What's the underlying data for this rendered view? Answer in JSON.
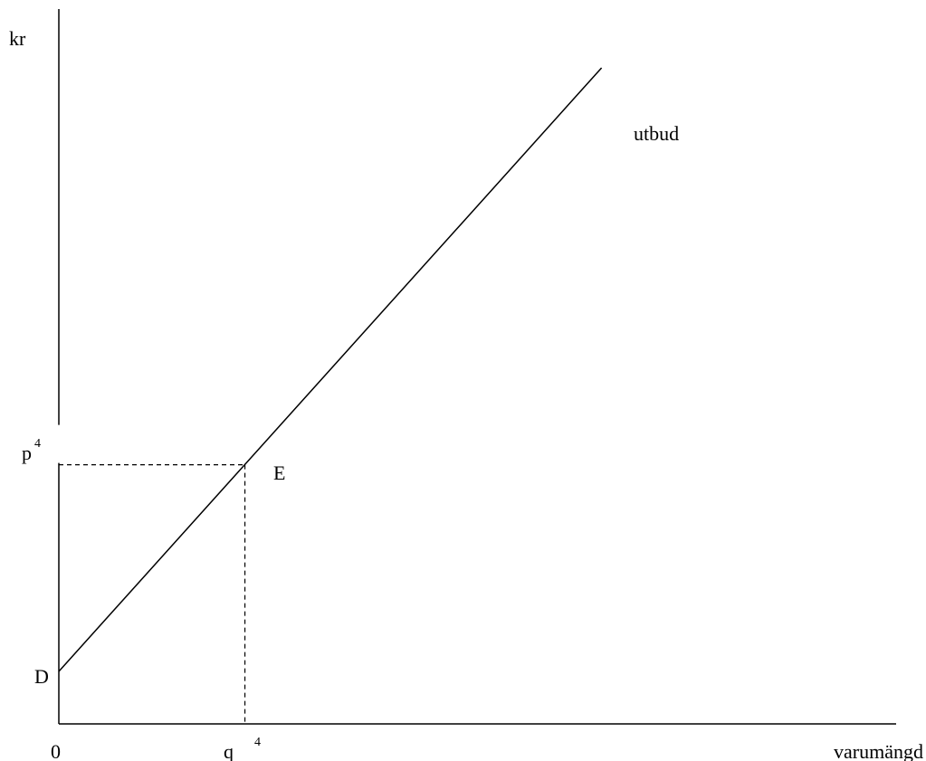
{
  "chart_data": {
    "type": "line",
    "title": "",
    "xlabel": "varumängd",
    "ylabel": "kr",
    "origin_label": "0",
    "xlim": [
      0,
      100
    ],
    "ylim": [
      0,
      100
    ],
    "grid": false,
    "series": [
      {
        "name": "utbud",
        "x": [
          0,
          70
        ],
        "y": [
          8,
          100
        ]
      }
    ],
    "points": [
      {
        "name": "D",
        "label": "D",
        "x": 0,
        "y": 8
      },
      {
        "name": "E",
        "label": "E",
        "x": 24,
        "y": 39.5
      }
    ],
    "guides": {
      "price": {
        "label": "p",
        "sup": "4",
        "value": 39.5
      },
      "quantity": {
        "label": "q",
        "sup": "4",
        "value": 24
      }
    },
    "colors": {
      "line": "#000000",
      "axis": "#000000",
      "background": "#ffffff"
    }
  }
}
